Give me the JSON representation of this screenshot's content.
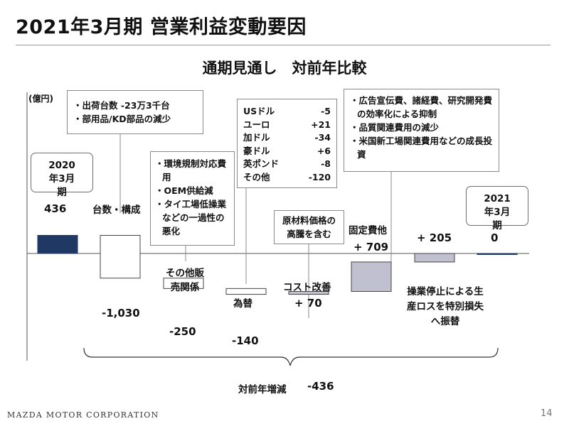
{
  "header": {
    "title": "2021年3月期 営業利益変動要因",
    "subtitle": "通期見通し　対前年比較",
    "unit": "(億円)"
  },
  "annotations": {
    "volume": [
      "出荷台数 -23万3千台",
      "部用品/KD部品の減少"
    ],
    "other_sales": [
      "環境規制対応費用",
      "OEM供給減",
      "タイ工場低操業などの一過性の悪化"
    ],
    "fx": [
      {
        "currency": "USドル",
        "value": "-5"
      },
      {
        "currency": "ユーロ",
        "value": "+21"
      },
      {
        "currency": "加ドル",
        "value": "-34"
      },
      {
        "currency": "豪ドル",
        "value": "+6"
      },
      {
        "currency": "英ポンド",
        "value": "-8"
      },
      {
        "currency": "その他",
        "value": "-120"
      }
    ],
    "cost_improvement": "原材料価格の高騰を含む",
    "fixed_costs": [
      "広告宣伝費、諸経費、研究開発費の効率化による抑制",
      "品質関連費用の減少",
      "米国新工場関連費用などの成長投資"
    ],
    "shutdown_note": "操業停止による生産ロスを特別損失へ振替",
    "total_change_label": "対前年増減",
    "total_change_value": "-436"
  },
  "chart_data": {
    "type": "waterfall",
    "unit": "億円",
    "steps": [
      {
        "label": "2020年3月期",
        "value": 436,
        "kind": "total",
        "value_label": "436",
        "color": "#203864"
      },
      {
        "label": "台数・構成",
        "value": -1030,
        "kind": "delta",
        "value_label": "-1,030",
        "color": "#ffffff"
      },
      {
        "label": "その他販売関係",
        "value": -250,
        "kind": "delta",
        "value_label": "-250",
        "color": "#ffffff"
      },
      {
        "label": "為替",
        "value": -140,
        "kind": "delta",
        "value_label": "-140",
        "color": "#ffffff"
      },
      {
        "label": "コスト改善",
        "value": 70,
        "kind": "delta",
        "value_label": "+ 70",
        "color": "#c0c0d0"
      },
      {
        "label": "固定費他",
        "value": 709,
        "kind": "delta",
        "value_label": "+ 709",
        "color": "#c0c0d0"
      },
      {
        "label": "",
        "value": 205,
        "kind": "delta",
        "value_label": "+ 205",
        "color": "#c0c0d0"
      },
      {
        "label": "2021年3月期",
        "value": 0,
        "kind": "total",
        "value_label": "0",
        "color": "#203864"
      }
    ]
  },
  "footer": {
    "company": "MAZDA MOTOR CORPORATION",
    "page": "14"
  }
}
